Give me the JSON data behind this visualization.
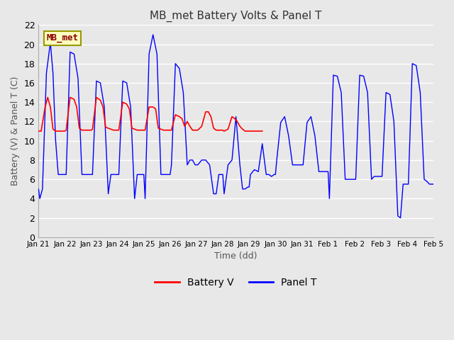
{
  "title": "MB_met Battery Volts & Panel T",
  "xlabel": "Time (dd)",
  "ylabel": "Battery (V) & Panel T (C)",
  "ylim": [
    0,
    22
  ],
  "yticks": [
    0,
    2,
    4,
    6,
    8,
    10,
    12,
    14,
    16,
    18,
    20,
    22
  ],
  "legend_label_battery": "Battery V",
  "legend_label_panel": "Panel T",
  "watermark_text": "MB_met",
  "bg_color": "#e8e8e8",
  "grid_color": "white",
  "battery_color": "red",
  "panel_color": "blue",
  "x_start": 0,
  "x_end": 15,
  "xtick_labels": [
    "Jan 21",
    "Jan 22",
    "Jan 23",
    "Jan 24",
    "Jan 25",
    "Jan 26",
    "Jan 27",
    "Jan 28",
    "Jan 29",
    "Jan 30",
    "Jan 31",
    "Feb 1",
    "Feb 2",
    "Feb 3",
    "Feb 4",
    "Feb 5"
  ],
  "xtick_positions": [
    0,
    1,
    2,
    3,
    4,
    5,
    6,
    7,
    8,
    9,
    10,
    11,
    12,
    13,
    14,
    15
  ],
  "panel_t_x": [
    0.0,
    0.05,
    0.15,
    0.3,
    0.45,
    0.55,
    0.65,
    0.75,
    0.85,
    0.95,
    1.0,
    1.05,
    1.2,
    1.35,
    1.5,
    1.65,
    1.75,
    1.85,
    1.95,
    2.0,
    2.05,
    2.2,
    2.35,
    2.5,
    2.65,
    2.75,
    2.85,
    2.95,
    3.0,
    3.05,
    3.2,
    3.35,
    3.5,
    3.65,
    3.75,
    3.85,
    3.95,
    4.0,
    4.05,
    4.2,
    4.35,
    4.5,
    4.65,
    4.75,
    4.85,
    4.95,
    5.0,
    5.05,
    5.2,
    5.35,
    5.5,
    5.65,
    5.75,
    5.85,
    5.95,
    6.0,
    6.05,
    6.2,
    6.35,
    6.5,
    6.65,
    6.75,
    6.85,
    6.95,
    7.0,
    7.05,
    7.2,
    7.35,
    7.5,
    7.65,
    7.75,
    7.85,
    7.95,
    8.0,
    8.05,
    8.2,
    8.35,
    8.5,
    8.65,
    8.75,
    8.85,
    8.95,
    9.0,
    9.05,
    9.2,
    9.35,
    9.5,
    9.65,
    9.75,
    9.85,
    9.95,
    10.0,
    10.05,
    10.2,
    10.35,
    10.5,
    10.65,
    10.75,
    10.85,
    10.95,
    11.0,
    11.05,
    11.2,
    11.35,
    11.5,
    11.65,
    11.75,
    11.85,
    11.95,
    12.0,
    12.05,
    12.2,
    12.35,
    12.5,
    12.65,
    12.75,
    12.85,
    12.95,
    13.0,
    13.05,
    13.2,
    13.35,
    13.5,
    13.65,
    13.75,
    13.85,
    13.95,
    14.0,
    14.05,
    14.2,
    14.35,
    14.5,
    14.65,
    14.75,
    14.85,
    14.95,
    15.0
  ],
  "panel_t_y": [
    5.0,
    4.0,
    5.0,
    17.0,
    20.2,
    17.0,
    10.0,
    6.5,
    6.5,
    6.5,
    6.5,
    6.5,
    19.2,
    19.0,
    16.5,
    6.5,
    6.5,
    6.5,
    6.5,
    6.5,
    6.5,
    16.2,
    16.0,
    13.5,
    4.5,
    6.5,
    6.5,
    6.5,
    6.5,
    6.5,
    16.2,
    16.0,
    13.5,
    4.0,
    6.5,
    6.5,
    6.5,
    6.5,
    4.0,
    19.0,
    21.0,
    19.0,
    6.5,
    6.5,
    6.5,
    6.5,
    6.5,
    7.5,
    18.0,
    17.5,
    15.0,
    7.5,
    8.0,
    8.0,
    7.5,
    7.5,
    7.5,
    8.0,
    8.0,
    7.5,
    4.5,
    4.5,
    6.5,
    6.5,
    6.5,
    4.5,
    7.5,
    8.0,
    12.5,
    7.5,
    5.0,
    5.0,
    5.2,
    5.2,
    6.5,
    7.0,
    6.8,
    9.7,
    6.5,
    6.5,
    6.3,
    6.5,
    6.5,
    8.0,
    11.9,
    12.5,
    10.5,
    7.5,
    7.5,
    7.5,
    7.5,
    7.5,
    7.5,
    11.9,
    12.5,
    10.5,
    6.8,
    6.8,
    6.8,
    6.8,
    6.8,
    4.0,
    16.8,
    16.7,
    15.0,
    6.0,
    6.0,
    6.0,
    6.0,
    6.0,
    6.0,
    16.8,
    16.7,
    15.0,
    6.0,
    6.3,
    6.3,
    6.3,
    6.3,
    6.3,
    15.0,
    14.8,
    12.0,
    2.2,
    2.0,
    5.5,
    5.5,
    5.5,
    5.5,
    18.0,
    17.8,
    15.0,
    6.0,
    5.8,
    5.5,
    5.5,
    5.5
  ],
  "battery_v_x": [
    0.0,
    0.1,
    0.25,
    0.35,
    0.45,
    0.55,
    0.65,
    0.75,
    0.85,
    0.95,
    1.0,
    1.05,
    1.2,
    1.35,
    1.45,
    1.55,
    1.65,
    1.75,
    1.85,
    1.95,
    2.0,
    2.05,
    2.2,
    2.35,
    2.45,
    2.55,
    2.65,
    2.75,
    2.85,
    2.95,
    3.0,
    3.05,
    3.2,
    3.35,
    3.45,
    3.55,
    3.65,
    3.75,
    3.85,
    3.95,
    4.0,
    4.05,
    4.2,
    4.35,
    4.45,
    4.55,
    4.65,
    4.75,
    4.85,
    4.95,
    5.0,
    5.05,
    5.2,
    5.35,
    5.45,
    5.55,
    5.65,
    5.75,
    5.85,
    5.95,
    6.0,
    6.05,
    6.2,
    6.35,
    6.45,
    6.55,
    6.65,
    6.75,
    6.85,
    6.95,
    7.0,
    7.05,
    7.2,
    7.35,
    7.45,
    7.55,
    7.65,
    7.75,
    7.85,
    7.95,
    8.0,
    8.05,
    8.2,
    8.35,
    8.5
  ],
  "battery_v_y": [
    11.0,
    11.0,
    13.5,
    14.5,
    13.5,
    11.2,
    11.0,
    11.0,
    11.0,
    11.0,
    11.0,
    11.1,
    14.5,
    14.3,
    13.5,
    11.3,
    11.1,
    11.1,
    11.1,
    11.1,
    11.1,
    11.2,
    14.5,
    14.2,
    13.5,
    11.4,
    11.3,
    11.2,
    11.1,
    11.1,
    11.1,
    11.1,
    14.0,
    13.8,
    13.3,
    11.3,
    11.2,
    11.1,
    11.1,
    11.1,
    11.1,
    11.1,
    13.5,
    13.5,
    13.3,
    11.3,
    11.2,
    11.1,
    11.1,
    11.1,
    11.1,
    11.1,
    12.7,
    12.5,
    12.3,
    11.5,
    12.0,
    11.5,
    11.1,
    11.1,
    11.1,
    11.1,
    11.5,
    13.0,
    13.0,
    12.5,
    11.3,
    11.1,
    11.1,
    11.1,
    11.1,
    11.0,
    11.2,
    12.5,
    12.3,
    12.0,
    11.5,
    11.2,
    11.0,
    11.0,
    11.0,
    11.0,
    11.0,
    11.0,
    11.0
  ]
}
